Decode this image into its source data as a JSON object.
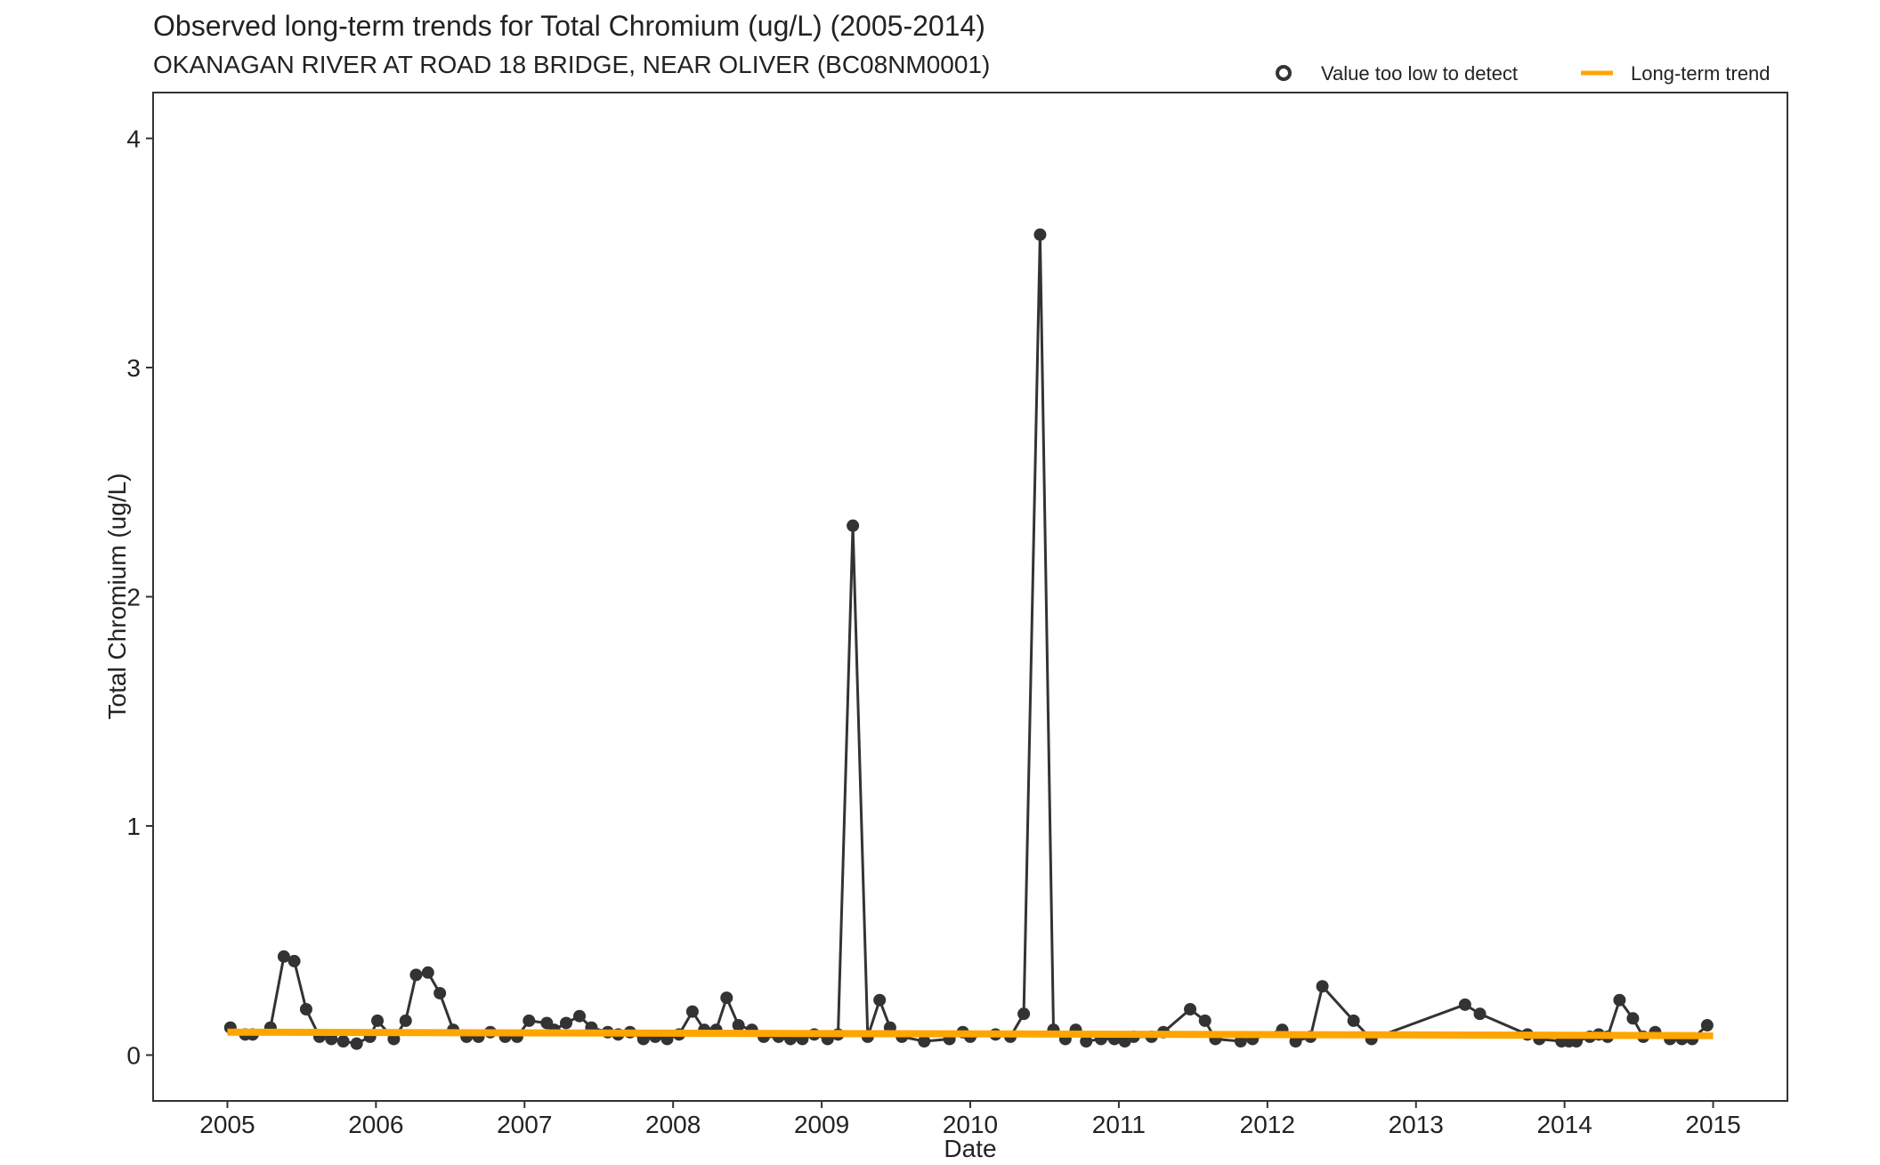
{
  "chart_data": {
    "type": "line",
    "title": "Observed long-term trends for Total Chromium (ug/L) (2005-2014)",
    "subtitle": "OKANAGAN RIVER AT ROAD 18 BRIDGE, NEAR OLIVER (BC08NM0001)",
    "xlabel": "Date",
    "ylabel": "Total Chromium (ug/L)",
    "xlim": [
      2004.5,
      2015.5
    ],
    "ylim": [
      -0.2,
      4.2
    ],
    "x_ticks": [
      2005,
      2006,
      2007,
      2008,
      2009,
      2010,
      2011,
      2012,
      2013,
      2014,
      2015
    ],
    "x_tick_labels": [
      "2005",
      "2006",
      "2007",
      "2008",
      "2009",
      "2010",
      "2011",
      "2012",
      "2013",
      "2014",
      "2015"
    ],
    "y_ticks": [
      0,
      1,
      2,
      3,
      4
    ],
    "y_tick_labels": [
      "0",
      "1",
      "2",
      "3",
      "4"
    ],
    "grid": false,
    "legend": {
      "placement": "top-right",
      "entries": [
        {
          "label": "Value too low to detect",
          "symbol": "open-circle"
        },
        {
          "label": "Long-term trend",
          "symbol": "line"
        }
      ]
    },
    "colors": {
      "observed": "#333333",
      "trend": "#FFA500"
    },
    "series": [
      {
        "type": "line-points",
        "points": [
          [
            2005.02,
            0.12
          ],
          [
            2005.12,
            0.09
          ],
          [
            2005.17,
            0.09
          ],
          [
            2005.29,
            0.12
          ],
          [
            2005.38,
            0.43
          ],
          [
            2005.45,
            0.41
          ],
          [
            2005.53,
            0.2
          ],
          [
            2005.62,
            0.08
          ],
          [
            2005.7,
            0.07
          ],
          [
            2005.78,
            0.06
          ],
          [
            2005.87,
            0.05
          ],
          [
            2005.96,
            0.08
          ],
          [
            2006.01,
            0.15
          ],
          [
            2006.12,
            0.07
          ],
          [
            2006.2,
            0.15
          ],
          [
            2006.27,
            0.35
          ],
          [
            2006.35,
            0.36
          ],
          [
            2006.43,
            0.27
          ],
          [
            2006.52,
            0.11
          ],
          [
            2006.61,
            0.08
          ],
          [
            2006.69,
            0.08
          ],
          [
            2006.77,
            0.1
          ],
          [
            2006.87,
            0.08
          ],
          [
            2006.95,
            0.08
          ],
          [
            2007.03,
            0.15
          ],
          [
            2007.15,
            0.14
          ],
          [
            2007.2,
            0.11
          ],
          [
            2007.28,
            0.14
          ],
          [
            2007.37,
            0.17
          ],
          [
            2007.45,
            0.12
          ],
          [
            2007.56,
            0.1
          ],
          [
            2007.63,
            0.09
          ],
          [
            2007.71,
            0.1
          ],
          [
            2007.8,
            0.07
          ],
          [
            2007.88,
            0.08
          ],
          [
            2007.96,
            0.07
          ],
          [
            2008.04,
            0.09
          ],
          [
            2008.13,
            0.19
          ],
          [
            2008.21,
            0.11
          ],
          [
            2008.29,
            0.11
          ],
          [
            2008.36,
            0.25
          ],
          [
            2008.44,
            0.13
          ],
          [
            2008.53,
            0.11
          ],
          [
            2008.61,
            0.08
          ],
          [
            2008.71,
            0.08
          ],
          [
            2008.79,
            0.07
          ],
          [
            2008.87,
            0.07
          ],
          [
            2008.95,
            0.09
          ],
          [
            2009.04,
            0.07
          ],
          [
            2009.11,
            0.09
          ],
          [
            2009.21,
            2.31
          ],
          [
            2009.31,
            0.08
          ],
          [
            2009.39,
            0.24
          ],
          [
            2009.46,
            0.12
          ],
          [
            2009.54,
            0.08
          ],
          [
            2009.69,
            0.06
          ],
          [
            2009.86,
            0.07
          ],
          [
            2009.95,
            0.1
          ],
          [
            2010.0,
            0.08
          ],
          [
            2010.17,
            0.09
          ],
          [
            2010.27,
            0.08
          ],
          [
            2010.36,
            0.18
          ],
          [
            2010.47,
            3.58
          ],
          [
            2010.56,
            0.11
          ],
          [
            2010.64,
            0.07
          ],
          [
            2010.71,
            0.11
          ],
          [
            2010.78,
            0.06
          ],
          [
            2010.88,
            0.07
          ],
          [
            2010.97,
            0.07
          ],
          [
            2011.04,
            0.06
          ],
          [
            2011.1,
            0.08
          ],
          [
            2011.22,
            0.08
          ],
          [
            2011.3,
            0.1
          ],
          [
            2011.48,
            0.2
          ],
          [
            2011.58,
            0.15
          ],
          [
            2011.65,
            0.07
          ],
          [
            2011.82,
            0.06
          ],
          [
            2011.9,
            0.07
          ],
          [
            2012.1,
            0.11
          ],
          [
            2012.19,
            0.06
          ],
          [
            2012.29,
            0.08
          ],
          [
            2012.37,
            0.3
          ],
          [
            2012.58,
            0.15
          ],
          [
            2012.7,
            0.07
          ],
          [
            2013.33,
            0.22
          ],
          [
            2013.43,
            0.18
          ],
          [
            2013.75,
            0.09
          ],
          [
            2013.83,
            0.07
          ],
          [
            2013.98,
            0.06
          ],
          [
            2014.03,
            0.06
          ],
          [
            2014.08,
            0.06
          ],
          [
            2014.17,
            0.08
          ],
          [
            2014.23,
            0.09
          ],
          [
            2014.29,
            0.08
          ],
          [
            2014.37,
            0.24
          ],
          [
            2014.46,
            0.16
          ],
          [
            2014.53,
            0.08
          ],
          [
            2014.61,
            0.1
          ],
          [
            2014.71,
            0.07
          ],
          [
            2014.79,
            0.07
          ],
          [
            2014.86,
            0.07
          ],
          [
            2014.96,
            0.13
          ]
        ]
      },
      {
        "type": "trend",
        "points": [
          [
            2005.0,
            0.1
          ],
          [
            2015.0,
            0.085
          ]
        ]
      }
    ]
  }
}
